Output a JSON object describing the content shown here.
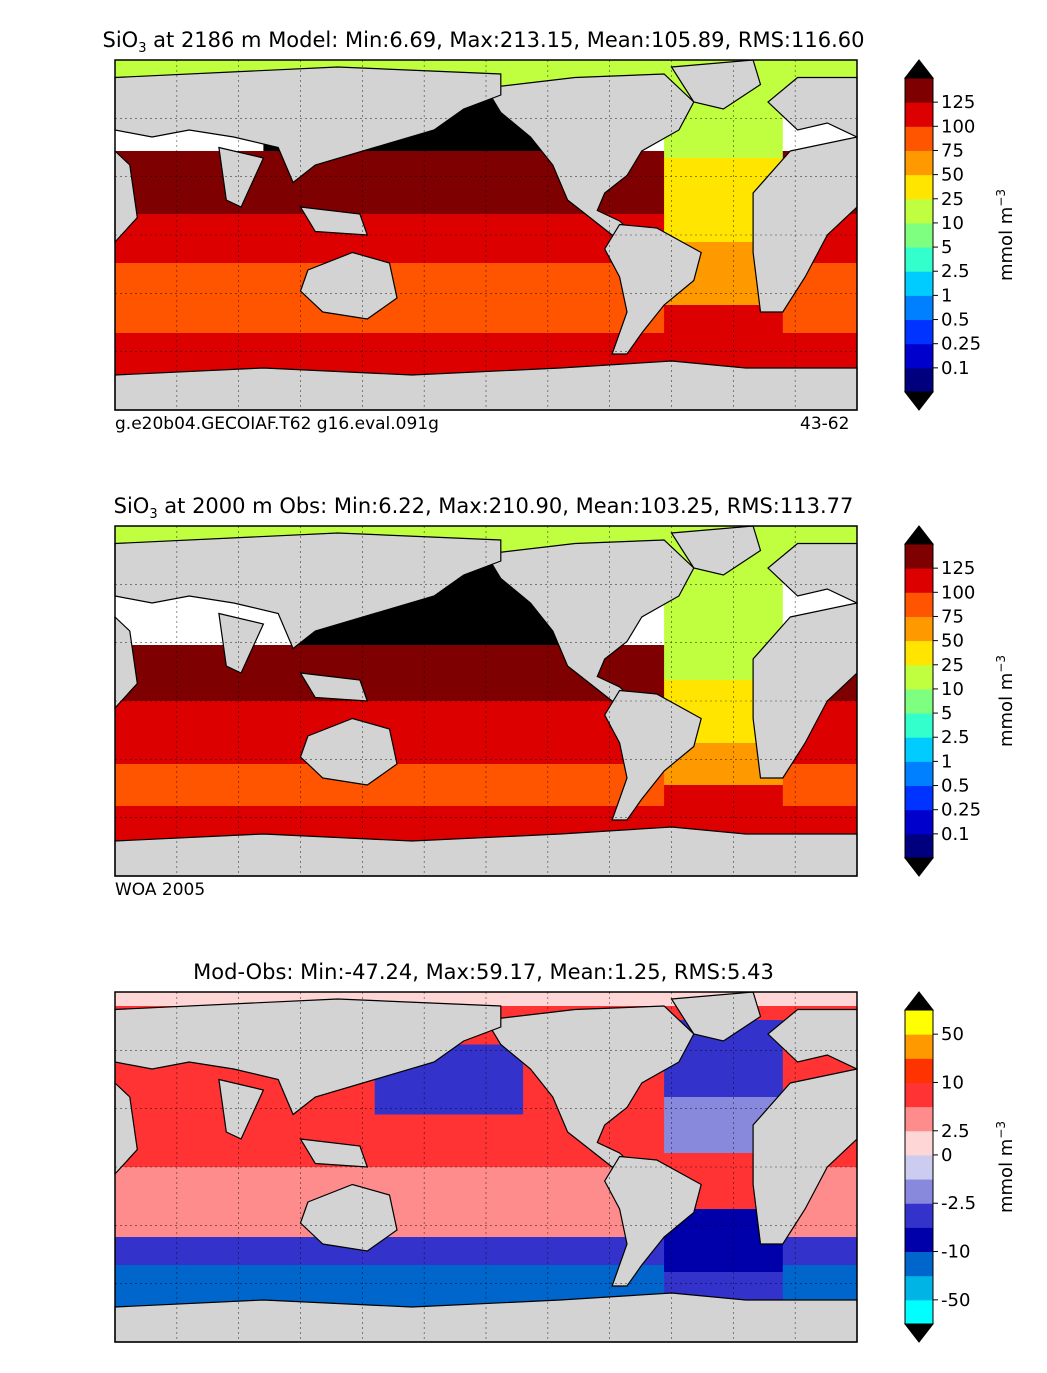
{
  "panels": [
    {
      "title_main": "SiO",
      "title_sub": "3",
      "title_rest": " at 2186 m Model: Min:6.69, Max:213.15, Mean:105.89, RMS:116.60",
      "caption_left": "g.e20b04.GECOIAF.T62 g16.eval.091g",
      "caption_right": "43-62"
    },
    {
      "title_main": "SiO",
      "title_sub": "3",
      "title_rest": " at 2000 m Obs: Min:6.22, Max:210.90, Mean:103.25, RMS:113.77",
      "caption_left": "WOA 2005",
      "caption_right": ""
    },
    {
      "title_main": "Mod-Obs: Min:-47.24, Max:59.17, Mean:1.25, RMS:5.43",
      "title_sub": "",
      "title_rest": "",
      "caption_left": "",
      "caption_right": ""
    }
  ],
  "chart_data": [
    {
      "type": "heatmap",
      "field": "SiO3 model at 2186 m",
      "stats": {
        "min": 6.69,
        "max": 213.15,
        "mean": 105.89,
        "rms": 116.6
      },
      "colorbar": {
        "label": "mmol m",
        "label_exp": "−3",
        "tick_labels": [
          "0.1",
          "0.25",
          "0.5",
          "1",
          "2.5",
          "5",
          "10",
          "25",
          "50",
          "75",
          "100",
          "125"
        ],
        "colors": [
          "#00007f",
          "#0000cc",
          "#0033ff",
          "#007fff",
          "#00ccff",
          "#33ffcc",
          "#7fff7f",
          "#bfff3f",
          "#ffe500",
          "#ff9900",
          "#ff5500",
          "#dd0000",
          "#7f0000"
        ],
        "extend": "both",
        "under": "#000000",
        "over": "#000000"
      },
      "land_color": "#d3d3d3",
      "missing_color": "#ffffff"
    },
    {
      "type": "heatmap",
      "field": "SiO3 observed at 2000 m",
      "stats": {
        "min": 6.22,
        "max": 210.9,
        "mean": 103.25,
        "rms": 113.77
      },
      "colorbar": {
        "label": "mmol m",
        "label_exp": "−3",
        "tick_labels": [
          "0.1",
          "0.25",
          "0.5",
          "1",
          "2.5",
          "5",
          "10",
          "25",
          "50",
          "75",
          "100",
          "125"
        ],
        "colors": [
          "#00007f",
          "#0000cc",
          "#0033ff",
          "#007fff",
          "#00ccff",
          "#33ffcc",
          "#7fff7f",
          "#bfff3f",
          "#ffe500",
          "#ff9900",
          "#ff5500",
          "#dd0000",
          "#7f0000"
        ],
        "extend": "both",
        "under": "#000000",
        "over": "#000000"
      },
      "land_color": "#d3d3d3",
      "missing_color": "#ffffff"
    },
    {
      "type": "heatmap",
      "field": "Model minus Obs",
      "stats": {
        "min": -47.24,
        "max": 59.17,
        "mean": 1.25,
        "rms": 5.43
      },
      "colorbar": {
        "label": "mmol m",
        "label_exp": "−3",
        "tick_labels": [
          "-50",
          "-10",
          "-2.5",
          "0",
          "2.5",
          "10",
          "50"
        ],
        "colors": [
          "#00ffff",
          "#00b4e6",
          "#0066cc",
          "#0000aa",
          "#3333cc",
          "#8888dd",
          "#ccccf0",
          "#ffd6d6",
          "#ff8c8c",
          "#ff3333",
          "#ff3300",
          "#ff9900",
          "#ffff00"
        ],
        "extend": "both",
        "under": "#000000",
        "over": "#000000"
      },
      "land_color": "#d3d3d3",
      "missing_color": "#ffffff"
    }
  ]
}
